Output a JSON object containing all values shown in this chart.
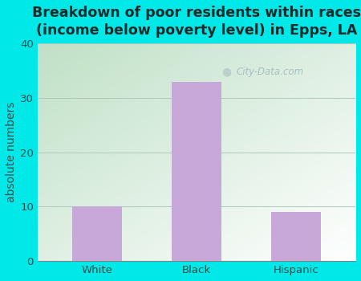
{
  "categories": [
    "White",
    "Black",
    "Hispanic"
  ],
  "values": [
    10,
    33,
    9
  ],
  "bar_color": "#c8a8d8",
  "background_color": "#00e8e8",
  "title_line1": "Breakdown of poor residents within races",
  "title_line2": "(income below poverty level) in Epps, LA",
  "ylabel": "absolute numbers",
  "ylim": [
    0,
    40
  ],
  "yticks": [
    0,
    10,
    20,
    30,
    40
  ],
  "title_fontsize": 12.5,
  "label_fontsize": 10,
  "tick_fontsize": 9.5,
  "bar_width": 0.5,
  "watermark": "City-Data.com",
  "plot_grad_top": "#f0f8f0",
  "plot_grad_bottom": "#c8e8d0",
  "title_color": "#1a2a2a",
  "tick_color": "#2a5050"
}
